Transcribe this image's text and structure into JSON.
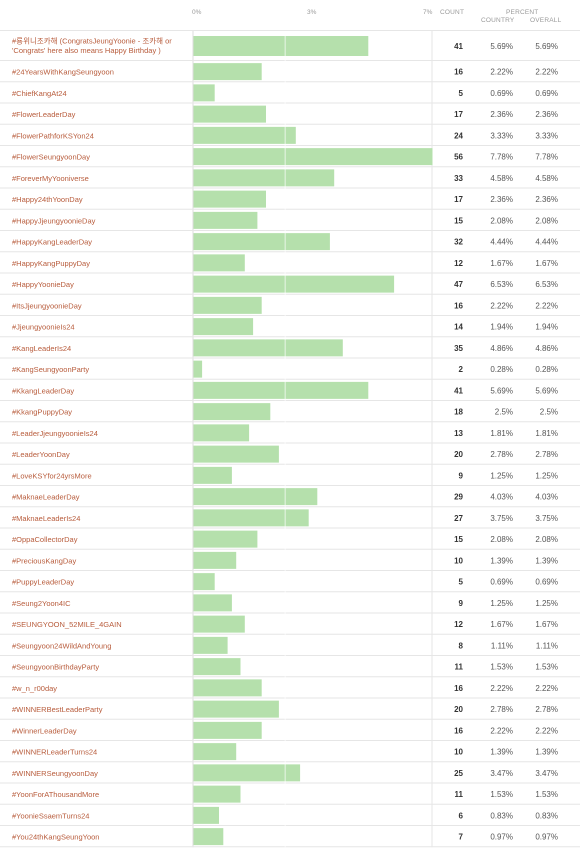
{
  "header": {
    "tick_0": "0%",
    "tick_mid": "3%",
    "tick_max": "7%",
    "count": "COUNT",
    "percent": "PERCENT",
    "country": "COUNTRY",
    "overall": "OVERALL"
  },
  "colors": {
    "bar": "#b5e0ac",
    "bar_edge": "#8fcc83",
    "row_line": "#e6e6e6",
    "label": "#b85c3c"
  },
  "chart_data": {
    "type": "bar",
    "orientation": "horizontal",
    "xlim": [
      0,
      7.78
    ],
    "x_ticks": [
      "0%",
      "3%",
      "7%"
    ],
    "grid": true,
    "rows": [
      {
        "label": "#룡위니조카해 (CongratsJeungYoonie - 조카해 or",
        "label2": "'Congrats' here also means Happy Birthday )",
        "count": 41,
        "country": "5.69%",
        "overall": "5.69%",
        "value": 5.69
      },
      {
        "label": "#24YearsWithKangSeungyoon",
        "count": 16,
        "country": "2.22%",
        "overall": "2.22%",
        "value": 2.22
      },
      {
        "label": "#ChiefKangAt24",
        "count": 5,
        "country": "0.69%",
        "overall": "0.69%",
        "value": 0.69
      },
      {
        "label": "#FlowerLeaderDay",
        "count": 17,
        "country": "2.36%",
        "overall": "2.36%",
        "value": 2.36
      },
      {
        "label": "#FlowerPathforKSYon24",
        "count": 24,
        "country": "3.33%",
        "overall": "3.33%",
        "value": 3.33
      },
      {
        "label": "#FlowerSeungyoonDay",
        "count": 56,
        "country": "7.78%",
        "overall": "7.78%",
        "value": 7.78
      },
      {
        "label": "#ForeverMyYooniverse",
        "count": 33,
        "country": "4.58%",
        "overall": "4.58%",
        "value": 4.58
      },
      {
        "label": "#Happy24thYoonDay",
        "count": 17,
        "country": "2.36%",
        "overall": "2.36%",
        "value": 2.36
      },
      {
        "label": "#HappyJjeungyoonieDay",
        "count": 15,
        "country": "2.08%",
        "overall": "2.08%",
        "value": 2.08
      },
      {
        "label": "#HappyKangLeaderDay",
        "count": 32,
        "country": "4.44%",
        "overall": "4.44%",
        "value": 4.44
      },
      {
        "label": "#HappyKangPuppyDay",
        "count": 12,
        "country": "1.67%",
        "overall": "1.67%",
        "value": 1.67
      },
      {
        "label": "#HappyYoonieDay",
        "count": 47,
        "country": "6.53%",
        "overall": "6.53%",
        "value": 6.53
      },
      {
        "label": "#ItsJjeungyoonieDay",
        "count": 16,
        "country": "2.22%",
        "overall": "2.22%",
        "value": 2.22
      },
      {
        "label": "#JjeungyoonieIs24",
        "count": 14,
        "country": "1.94%",
        "overall": "1.94%",
        "value": 1.94
      },
      {
        "label": "#KangLeaderIs24",
        "count": 35,
        "country": "4.86%",
        "overall": "4.86%",
        "value": 4.86
      },
      {
        "label": "#KangSeungyoonParty",
        "count": 2,
        "country": "0.28%",
        "overall": "0.28%",
        "value": 0.28
      },
      {
        "label": "#KkangLeaderDay",
        "count": 41,
        "country": "5.69%",
        "overall": "5.69%",
        "value": 5.69
      },
      {
        "label": "#KkangPuppyDay",
        "count": 18,
        "country": "2.5%",
        "overall": "2.5%",
        "value": 2.5
      },
      {
        "label": "#LeaderJjeungyoonieIs24",
        "count": 13,
        "country": "1.81%",
        "overall": "1.81%",
        "value": 1.81
      },
      {
        "label": "#LeaderYoonDay",
        "count": 20,
        "country": "2.78%",
        "overall": "2.78%",
        "value": 2.78
      },
      {
        "label": "#LoveKSYfor24yrsMore",
        "count": 9,
        "country": "1.25%",
        "overall": "1.25%",
        "value": 1.25
      },
      {
        "label": "#MaknaeLeaderDay",
        "count": 29,
        "country": "4.03%",
        "overall": "4.03%",
        "value": 4.03
      },
      {
        "label": "#MaknaeLeaderIs24",
        "count": 27,
        "country": "3.75%",
        "overall": "3.75%",
        "value": 3.75
      },
      {
        "label": "#OppaCollectorDay",
        "count": 15,
        "country": "2.08%",
        "overall": "2.08%",
        "value": 2.08
      },
      {
        "label": "#PreciousKangDay",
        "count": 10,
        "country": "1.39%",
        "overall": "1.39%",
        "value": 1.39
      },
      {
        "label": "#PuppyLeaderDay",
        "count": 5,
        "country": "0.69%",
        "overall": "0.69%",
        "value": 0.69
      },
      {
        "label": "#Seung2Yoon4IC",
        "count": 9,
        "country": "1.25%",
        "overall": "1.25%",
        "value": 1.25
      },
      {
        "label": "#SEUNGYOON_52MILE_4GAIN",
        "count": 12,
        "country": "1.67%",
        "overall": "1.67%",
        "value": 1.67
      },
      {
        "label": "#Seungyoon24WildAndYoung",
        "count": 8,
        "country": "1.11%",
        "overall": "1.11%",
        "value": 1.11
      },
      {
        "label": "#SeungyoonBirthdayParty",
        "count": 11,
        "country": "1.53%",
        "overall": "1.53%",
        "value": 1.53
      },
      {
        "label": "#w_n_r00day",
        "count": 16,
        "country": "2.22%",
        "overall": "2.22%",
        "value": 2.22
      },
      {
        "label": "#WINNERBestLeaderParty",
        "count": 20,
        "country": "2.78%",
        "overall": "2.78%",
        "value": 2.78
      },
      {
        "label": "#WinnerLeaderDay",
        "count": 16,
        "country": "2.22%",
        "overall": "2.22%",
        "value": 2.22
      },
      {
        "label": "#WINNERLeaderTurns24",
        "count": 10,
        "country": "1.39%",
        "overall": "1.39%",
        "value": 1.39
      },
      {
        "label": "#WINNERSeungyoonDay",
        "count": 25,
        "country": "3.47%",
        "overall": "3.47%",
        "value": 3.47
      },
      {
        "label": "#YoonForAThousandMore",
        "count": 11,
        "country": "1.53%",
        "overall": "1.53%",
        "value": 1.53
      },
      {
        "label": "#YoonieSsaemTurns24",
        "count": 6,
        "country": "0.83%",
        "overall": "0.83%",
        "value": 0.83
      },
      {
        "label": "#You24thKangSeungYoon",
        "count": 7,
        "country": "0.97%",
        "overall": "0.97%",
        "value": 0.97
      }
    ]
  }
}
